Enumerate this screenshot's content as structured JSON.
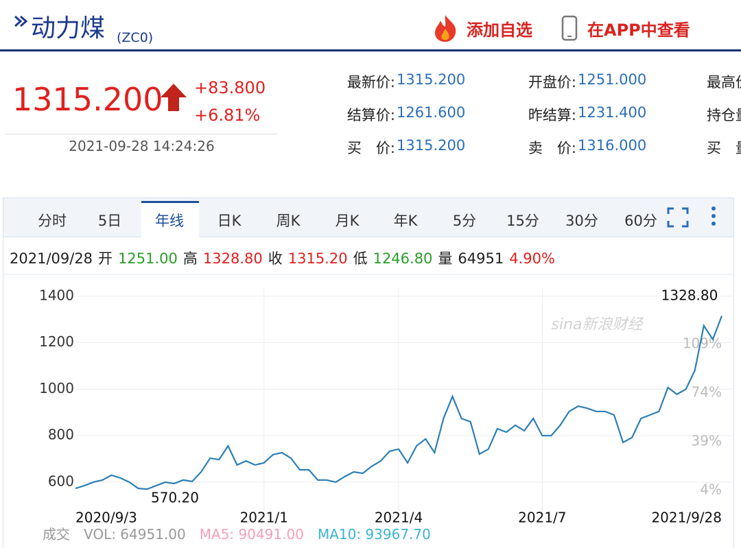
{
  "header": {
    "title": "动力煤",
    "code": "(ZC0)",
    "actions": [
      "添加自选",
      "在APP中查看"
    ]
  },
  "quote": {
    "price": "1315.200",
    "change": "+83.800",
    "change_pct": "+6.81%",
    "time": "2021-09-28 14:24:26"
  },
  "fields": {
    "rows": [
      [
        {
          "label": "最新价:",
          "value": "1315.200"
        },
        {
          "label": "开盘价:",
          "value": "1251.000"
        },
        {
          "label": "最高价"
        }
      ],
      [
        {
          "label": "结算价:",
          "value": "1261.600"
        },
        {
          "label": "昨结算:",
          "value": "1231.400"
        },
        {
          "label": "持仓量"
        }
      ],
      [
        {
          "label": "买　价:",
          "value": "1315.200"
        },
        {
          "label": "卖　价:",
          "value": "1316.000"
        },
        {
          "label": "买　量"
        }
      ]
    ]
  },
  "tabs": {
    "items": [
      "分时",
      "5日",
      "年线",
      "日K",
      "周K",
      "月K",
      "年K",
      "5分",
      "15分",
      "30分",
      "60分"
    ],
    "active": "年线"
  },
  "info": {
    "date": "2021/09/28",
    "items": [
      {
        "label": "开",
        "value": "1251.00",
        "color": "#2a9d2a"
      },
      {
        "label": "高",
        "value": "1328.80",
        "color": "#e0201e"
      },
      {
        "label": "收",
        "value": "1315.20",
        "color": "#e0201e"
      },
      {
        "label": "低",
        "value": "1246.80",
        "color": "#2a9d2a"
      },
      {
        "label": "量",
        "value": "64951",
        "color": "#222222"
      }
    ],
    "extra": "4.90%"
  },
  "chart_data": {
    "type": "line",
    "watermark": "sina新浪财经",
    "categories": [
      "2020/9/3",
      null,
      null,
      null,
      null,
      null,
      null,
      null,
      null,
      null,
      null,
      null,
      null,
      null,
      null,
      null,
      null,
      null,
      null,
      null,
      null,
      "2021/1",
      null,
      null,
      null,
      null,
      null,
      null,
      null,
      null,
      null,
      null,
      null,
      null,
      null,
      null,
      "2021/4",
      null,
      null,
      null,
      null,
      null,
      null,
      null,
      null,
      null,
      null,
      null,
      null,
      null,
      null,
      null,
      "2021/7",
      null,
      null,
      null,
      null,
      null,
      null,
      null,
      null,
      null,
      null,
      null,
      null,
      null,
      null,
      null,
      null,
      null,
      null,
      null,
      "2021/9/28"
    ],
    "series": [
      {
        "name": "动力煤",
        "color": "#2b7fb5",
        "values": [
          573,
          585,
          600,
          609,
          630,
          618,
          600,
          573,
          570,
          585,
          600,
          594,
          609,
          603,
          644,
          703,
          697,
          756,
          674,
          691,
          674,
          683,
          718,
          727,
          703,
          653,
          653,
          609,
          609,
          600,
          624,
          644,
          638,
          668,
          691,
          733,
          742,
          683,
          756,
          786,
          727,
          874,
          969,
          874,
          860,
          721,
          742,
          830,
          815,
          845,
          821,
          874,
          800,
          800,
          845,
          904,
          927,
          918,
          904,
          904,
          889,
          771,
          792,
          874,
          889,
          904,
          1007,
          978,
          1000,
          1081,
          1273,
          1214,
          1315
        ]
      }
    ],
    "ylim": [
      476,
      1435
    ],
    "yticks": [
      600,
      800,
      1000,
      1200,
      1400
    ],
    "y2lim": [
      -10.8,
      149.4
    ],
    "y2ticks": [
      {
        "value": 4,
        "label": "4%"
      },
      {
        "value": 39,
        "label": "39%"
      },
      {
        "value": 74,
        "label": "74%"
      },
      {
        "value": 109,
        "label": "109%"
      }
    ],
    "grid": true,
    "annotations": [
      "1328.80",
      "570.20"
    ]
  },
  "volume": {
    "label": "成交",
    "items": [
      {
        "text": "VOL: 64951.00",
        "color": "#999999"
      },
      {
        "text": "MA5: 90491.00",
        "color": "#f2a0b9"
      },
      {
        "text": "MA10: 93967.70",
        "color": "#3bb4d4"
      }
    ]
  }
}
